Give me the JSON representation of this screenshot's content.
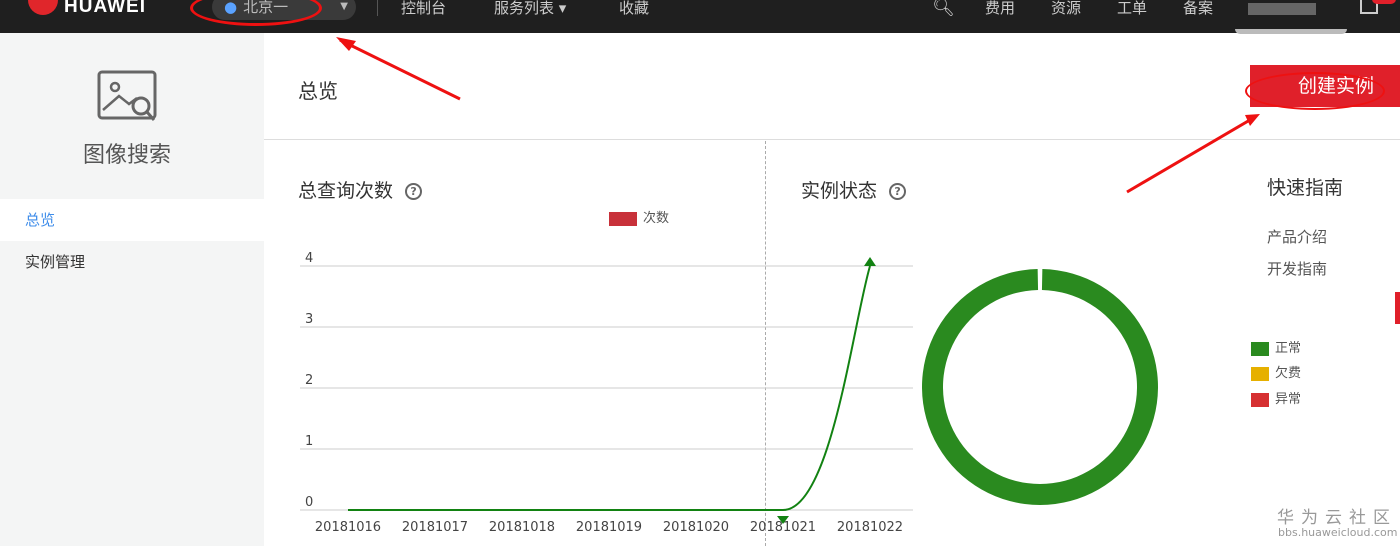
{
  "topbar": {
    "brand": "HUAWEI",
    "region": "北京一",
    "nav": [
      "控制台",
      "服务列表 ▾",
      "收藏"
    ],
    "right": [
      "费用",
      "资源",
      "工单",
      "备案"
    ]
  },
  "sidebar": {
    "title": "图像搜索",
    "items": [
      {
        "label": "总览",
        "active": true
      },
      {
        "label": "实例管理",
        "active": false
      }
    ]
  },
  "header": {
    "title": "总览",
    "create_button": "创建实例"
  },
  "queries": {
    "title": "总查询次数",
    "help": "?"
  },
  "status": {
    "title": "实例状态",
    "help": "?"
  },
  "guide": {
    "title": "快速指南",
    "links": [
      "产品介绍",
      "开发指南"
    ]
  },
  "watermark": {
    "text": "华为云社区",
    "url": "bbs.huaweicloud.com"
  },
  "colors": {
    "accent": "#e0202a",
    "line": "#128212",
    "normal": "#2a8a1f",
    "arrears": "#e6b000",
    "abnormal": "#d63031",
    "legend_bar": "#c8313a"
  },
  "chart_data": [
    {
      "type": "line",
      "legend": [
        "次数"
      ],
      "categories": [
        "20181016",
        "20181017",
        "20181018",
        "20181019",
        "20181020",
        "20181021",
        "20181022"
      ],
      "series": [
        {
          "name": "次数",
          "values": [
            0,
            0,
            0,
            0,
            0,
            0,
            4
          ]
        }
      ],
      "yticks": [
        "0",
        "1",
        "2",
        "3",
        "4"
      ],
      "ylim": [
        0,
        4
      ],
      "grid": true,
      "legend_position": "top"
    },
    {
      "type": "pie",
      "donut": true,
      "labels": [
        "正常",
        "欠费",
        "异常"
      ],
      "values": [
        1,
        0,
        0
      ],
      "legend_position": "right"
    }
  ]
}
